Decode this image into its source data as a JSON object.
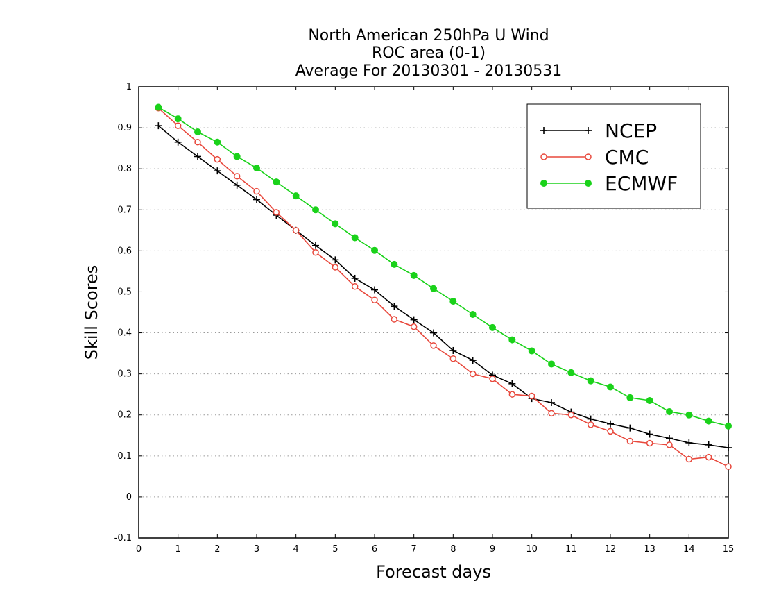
{
  "chart_data": {
    "type": "line",
    "title_lines": [
      "North American 250hPa U Wind",
      "ROC area (0-1)",
      "Average For 20130301 - 20130531"
    ],
    "xlabel": "Forecast days",
    "ylabel": "Skill Scores",
    "xlim": [
      0,
      15
    ],
    "ylim": [
      -0.1,
      1
    ],
    "x_ticks": [
      0,
      1,
      2,
      3,
      4,
      5,
      6,
      7,
      8,
      9,
      10,
      11,
      12,
      13,
      14,
      15
    ],
    "y_ticks": [
      -0.1,
      0,
      0.1,
      0.2,
      0.3,
      0.4,
      0.5,
      0.6,
      0.7,
      0.8,
      0.9,
      1
    ],
    "y_tick_labels": [
      "-0.1",
      "0",
      "0.1",
      "0.2",
      "0.3",
      "0.4",
      "0.5",
      "0.6",
      "0.7",
      "0.8",
      "0.9",
      "1"
    ],
    "x_tick_labels": [
      "0",
      "1",
      "2",
      "3",
      "4",
      "5",
      "6",
      "7",
      "8",
      "9",
      "10",
      "11",
      "12",
      "13",
      "14",
      "15"
    ],
    "grid": "horizontal dotted",
    "legend_position": "top-right",
    "x": [
      0.5,
      1,
      1.5,
      2,
      2.5,
      3,
      3.5,
      4,
      4.5,
      5,
      5.5,
      6,
      6.5,
      7,
      7.5,
      8,
      8.5,
      9,
      9.5,
      10,
      10.5,
      11,
      11.5,
      12,
      12.5,
      13,
      13.5,
      14,
      14.5,
      15
    ],
    "series": [
      {
        "name": "NCEP",
        "color": "#000000",
        "marker": "plus",
        "values": [
          0.905,
          0.865,
          0.83,
          0.795,
          0.76,
          0.725,
          0.687,
          0.65,
          0.613,
          0.578,
          0.533,
          0.505,
          0.465,
          0.432,
          0.4,
          0.357,
          0.333,
          0.297,
          0.276,
          0.24,
          0.23,
          0.207,
          0.19,
          0.178,
          0.168,
          0.153,
          0.143,
          0.132,
          0.127,
          0.12
        ]
      },
      {
        "name": "CMC",
        "color": "#e8483c",
        "marker": "open-circle",
        "values": [
          0.948,
          0.905,
          0.865,
          0.823,
          0.782,
          0.745,
          0.694,
          0.65,
          0.596,
          0.56,
          0.513,
          0.48,
          0.433,
          0.415,
          0.369,
          0.337,
          0.3,
          0.288,
          0.25,
          0.246,
          0.204,
          0.2,
          0.176,
          0.16,
          0.136,
          0.131,
          0.127,
          0.092,
          0.097,
          0.074
        ]
      },
      {
        "name": "ECMWF",
        "color": "#1ad21a",
        "marker": "filled-circle",
        "values": [
          0.95,
          0.922,
          0.89,
          0.865,
          0.83,
          0.802,
          0.768,
          0.734,
          0.7,
          0.666,
          0.632,
          0.601,
          0.567,
          0.54,
          0.508,
          0.477,
          0.445,
          0.413,
          0.383,
          0.356,
          0.324,
          0.303,
          0.283,
          0.268,
          0.242,
          0.235,
          0.208,
          0.2,
          0.185,
          0.173
        ]
      }
    ]
  }
}
